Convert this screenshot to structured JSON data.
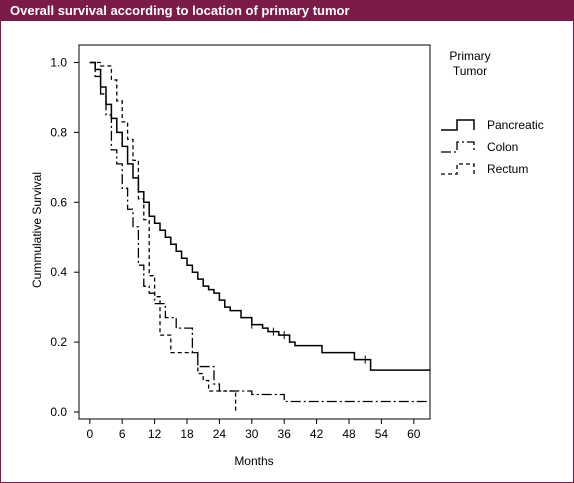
{
  "header": {
    "title": "Overall survival according to location of primary tumor"
  },
  "colors": {
    "title_bar": "#7a1b4a",
    "title_text": "#ffffff",
    "lines": "#000000"
  },
  "chart_data": {
    "type": "line",
    "subtype": "kaplan-meier step curves",
    "title": "",
    "xlabel": "Months",
    "ylabel": "Cummulative Survival",
    "xlim": [
      -2,
      63
    ],
    "ylim": [
      -0.02,
      1.05
    ],
    "xticks": [
      0,
      6,
      12,
      18,
      24,
      30,
      36,
      42,
      48,
      54,
      60
    ],
    "yticks": [
      0.0,
      0.2,
      0.4,
      0.6,
      0.8,
      1.0
    ],
    "ytick_labels": [
      "0.0",
      "0.2",
      "0.4",
      "0.6",
      "0.8",
      "1.0"
    ],
    "grid": false,
    "legend": {
      "title_lines": [
        "Primary",
        "Tumor"
      ],
      "position": "right"
    },
    "series": [
      {
        "name": "Pancreatic",
        "style": "solid",
        "x": [
          0,
          1,
          2,
          3,
          4,
          5,
          6,
          7,
          8,
          9,
          10,
          11,
          12,
          13,
          14,
          15,
          16,
          17,
          18,
          19,
          20,
          21,
          22,
          23,
          24,
          25,
          26,
          28,
          30,
          32,
          33,
          35,
          37,
          38,
          43,
          49,
          52,
          63
        ],
        "y": [
          1.0,
          0.98,
          0.93,
          0.88,
          0.84,
          0.8,
          0.76,
          0.71,
          0.67,
          0.63,
          0.6,
          0.56,
          0.54,
          0.52,
          0.5,
          0.48,
          0.46,
          0.44,
          0.42,
          0.4,
          0.38,
          0.36,
          0.35,
          0.34,
          0.32,
          0.3,
          0.29,
          0.27,
          0.25,
          0.24,
          0.23,
          0.22,
          0.2,
          0.19,
          0.17,
          0.15,
          0.12,
          0.12
        ],
        "censor_x": [
          30,
          34,
          36,
          51
        ]
      },
      {
        "name": "Colon",
        "style": "dash-dot",
        "x": [
          0,
          1,
          2,
          3,
          4,
          5,
          6,
          7,
          8,
          9,
          10,
          11,
          12,
          14,
          16,
          19,
          20,
          23,
          24,
          30,
          36,
          63
        ],
        "y": [
          1.0,
          0.96,
          0.91,
          0.85,
          0.75,
          0.71,
          0.64,
          0.58,
          0.53,
          0.42,
          0.36,
          0.34,
          0.31,
          0.27,
          0.24,
          0.17,
          0.13,
          0.08,
          0.06,
          0.05,
          0.03,
          0.03
        ],
        "censor_x": []
      },
      {
        "name": "Rectum",
        "style": "dashed",
        "x": [
          0,
          2,
          4,
          5,
          6,
          7,
          8,
          9,
          10,
          11,
          12,
          13,
          15,
          20,
          21,
          22,
          23,
          27
        ],
        "y": [
          1.0,
          0.99,
          0.95,
          0.89,
          0.83,
          0.78,
          0.72,
          0.61,
          0.55,
          0.39,
          0.33,
          0.22,
          0.17,
          0.11,
          0.09,
          0.06,
          0.06,
          0.0
        ],
        "censor_x": []
      }
    ]
  }
}
